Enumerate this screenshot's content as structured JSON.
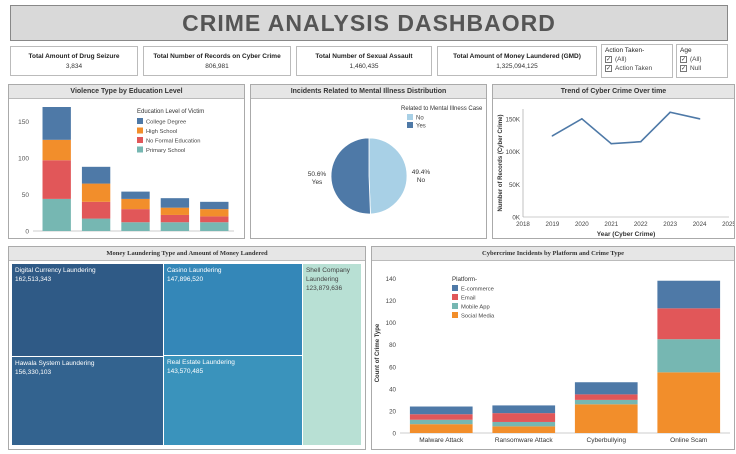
{
  "title": "CRIME ANALYSIS DASHBAORD",
  "kpis": [
    {
      "label": "Total Amount of Drug Seizure",
      "value": "3,834"
    },
    {
      "label": "Total Number of Records on Cyber Crime",
      "value": "806,981"
    },
    {
      "label": "Total Number of Sexual Assault",
      "value": "1,460,435"
    },
    {
      "label": "Total Amount of Money Laundered (GMD)",
      "value": "1,325,094,125"
    }
  ],
  "filters": {
    "action": {
      "label": "Action Taken-",
      "options": [
        "(All)",
        "Action Taken"
      ]
    },
    "age": {
      "label": "Age",
      "options": [
        "(All)",
        "Null"
      ]
    }
  },
  "panels": {
    "violence": "Violence Type by Education Level",
    "mental": "Incidents Related to Mental Illness Distribution",
    "trend": "Trend of Cyber Crime Over time",
    "laundering": "Money Laundering Type and Amount of Money Landered",
    "platform": "Cybercrime Incidents by Platform and Crime Type"
  },
  "colors": {
    "blue": "#4e79a7",
    "orange": "#f28e2b",
    "red": "#e15759",
    "teal": "#76b7b2",
    "lightblue": "#a8d0e6"
  },
  "chart_data": [
    {
      "id": "violence",
      "type": "bar",
      "stacked": true,
      "ylim": [
        0,
        170
      ],
      "yticks": [
        0,
        50,
        100,
        150
      ],
      "legend_title": "Education Level of Victim",
      "legend_position": "top-right",
      "categories": [
        "",
        "",
        "",
        "",
        ""
      ],
      "series": [
        {
          "name": "College Degree",
          "color": "#4e79a7",
          "values": [
            45,
            23,
            10,
            13,
            10
          ]
        },
        {
          "name": "High School",
          "color": "#f28e2b",
          "values": [
            28,
            25,
            14,
            10,
            10
          ]
        },
        {
          "name": "No Formal Education",
          "color": "#e15759",
          "values": [
            53,
            23,
            18,
            10,
            8
          ]
        },
        {
          "name": "Primary School",
          "color": "#76b7b2",
          "values": [
            44,
            17,
            12,
            12,
            12
          ]
        }
      ]
    },
    {
      "id": "mental",
      "type": "pie",
      "legend_title": "Related to Mental Illness Case",
      "legend_position": "top-right",
      "slices": [
        {
          "name": "No",
          "value": 49.4,
          "label": "49.4%",
          "color": "#a8d0e6"
        },
        {
          "name": "Yes",
          "value": 50.6,
          "label": "50.6%",
          "color": "#4e79a7"
        }
      ]
    },
    {
      "id": "trend",
      "type": "line",
      "ylabel": "Number of Records (Cyber Crime)",
      "xlabel": "Year (Cyber Crime)",
      "xlim": [
        2018,
        2025
      ],
      "xticks": [
        2018,
        2019,
        2020,
        2021,
        2022,
        2023,
        2024,
        2025
      ],
      "ylim": [
        0,
        165000
      ],
      "yticks": [
        0,
        50000,
        100000,
        150000
      ],
      "ytick_labels": [
        "0K",
        "50K",
        "100K",
        "150K"
      ],
      "x": [
        2019,
        2020,
        2021,
        2022,
        2023,
        2024
      ],
      "y": [
        124000,
        150000,
        112000,
        115000,
        160000,
        150000
      ],
      "color": "#4e79a7"
    },
    {
      "id": "laundering",
      "type": "treemap",
      "items": [
        {
          "name": "Digital Currency Laundering",
          "value": "162,513,343",
          "amount": 162513343,
          "color": "#2f5a86"
        },
        {
          "name": "Hawala System Laundering",
          "value": "156,330,103",
          "amount": 156330103,
          "color": "#33638f"
        },
        {
          "name": "Casino Laundering",
          "value": "147,896,520",
          "amount": 147896520,
          "color": "#3487b8"
        },
        {
          "name": "Real Estate Laundering",
          "value": "143,570,485",
          "amount": 143570485,
          "color": "#3a93bc"
        },
        {
          "name": "Shell Company Laundering",
          "value": "123,879,636",
          "amount": 123879636,
          "color": "#b8e0d4"
        }
      ]
    },
    {
      "id": "platform",
      "type": "bar",
      "stacked": true,
      "ylabel": "Count of Crime Type",
      "ylim": [
        0,
        145
      ],
      "yticks": [
        0,
        20,
        40,
        60,
        80,
        100,
        120,
        140
      ],
      "legend_title": "Platform-",
      "legend_position": "top-left",
      "categories": [
        "Malware Attack",
        "Ransomware Attack",
        "Cyberbullying",
        "Online Scam"
      ],
      "series": [
        {
          "name": "Social Media",
          "color": "#f28e2b",
          "values": [
            8,
            6,
            26,
            55
          ]
        },
        {
          "name": "Mobile App",
          "color": "#76b7b2",
          "values": [
            4,
            4,
            4,
            30
          ]
        },
        {
          "name": "Email",
          "color": "#e15759",
          "values": [
            5,
            8,
            5,
            28
          ]
        },
        {
          "name": "E-commerce",
          "color": "#4e79a7",
          "values": [
            7,
            7,
            11,
            25
          ]
        }
      ]
    }
  ]
}
